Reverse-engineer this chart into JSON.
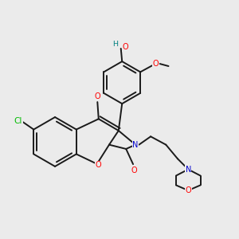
{
  "background_color": "#EBEBEB",
  "bond_color": "#1a1a1a",
  "atom_colors": {
    "O": "#FF0000",
    "N": "#0000CC",
    "Cl": "#00BB00",
    "H": "#008080",
    "C": "#1a1a1a"
  }
}
